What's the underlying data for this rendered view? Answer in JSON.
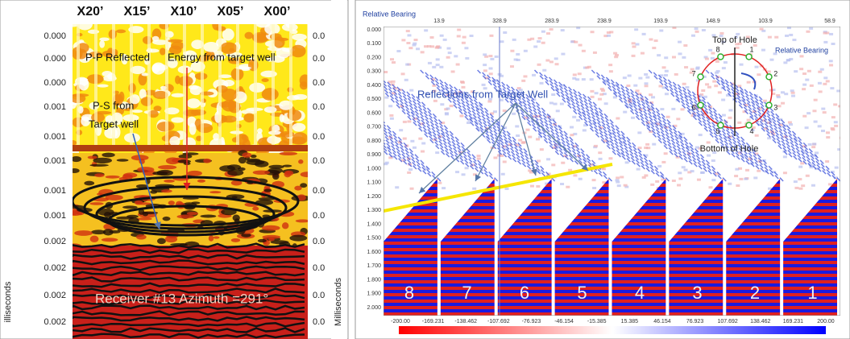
{
  "left_panel": {
    "x_labels": [
      "X20’",
      "X15’",
      "X10’",
      "X05’",
      "X00’"
    ],
    "y_labels": [
      "0.000",
      "0.000",
      "0.000",
      "0.001",
      "0.001",
      "0.001",
      "0.001",
      "0.001",
      "0.002",
      "0.002",
      "0.002",
      "0.002"
    ],
    "right_labels": [
      "0.0",
      "0.0",
      "0.0",
      "0.0",
      "0.0",
      "0.0",
      "0.0",
      "0.0",
      "0.0",
      "0.0",
      "0.0",
      "0.0"
    ],
    "y_axis_title": "illiseconds",
    "right_axis_title": "Milliseconds",
    "annotations": [
      "P-P Reflected",
      "Energy from target well",
      "P-S from",
      "Target well",
      "Receiver #13 Azimuth =291°"
    ]
  },
  "right_panel": {
    "title": "Relative Bearing",
    "top_labels": [
      "13.9",
      "328.9",
      "283.9",
      "238.9",
      "193.9",
      "148.9",
      "103.9",
      "58.9"
    ],
    "y_labels": [
      "0.000",
      "0.100",
      "0.200",
      "0.300",
      "0.400",
      "0.500",
      "0.600",
      "0.700",
      "0.800",
      "0.900",
      "1.000",
      "1.100",
      "1.200",
      "1.300",
      "1.400",
      "1.500",
      "1.600",
      "1.700",
      "1.800",
      "1.900",
      "2.000"
    ],
    "x_labels": [
      "-200.00",
      "-169.231",
      "-138.462",
      "-107.692",
      "-76.923",
      "-46.154",
      "-15.385",
      "15.385",
      "46.154",
      "76.923",
      "107.692",
      "138.462",
      "169.231",
      "200.00"
    ],
    "annotation": "Reflections from Target Well",
    "top_of_hole": "Top of Hole",
    "bottom_of_hole": "Bottom of Hole",
    "bearing_label": "Relative Bearing",
    "clock_numbers": [
      "1",
      "2",
      "3",
      "4",
      "5",
      "6",
      "7",
      "8"
    ],
    "receiver_numbers": [
      "8",
      "7",
      "6",
      "5",
      "4",
      "3",
      "2",
      "1"
    ]
  }
}
